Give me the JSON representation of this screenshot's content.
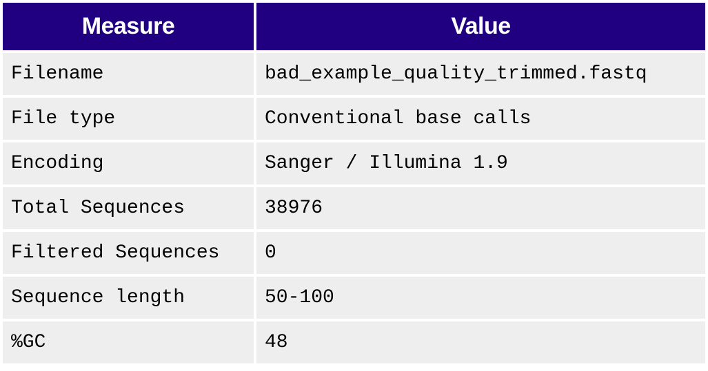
{
  "header": {
    "measure": "Measure",
    "value": "Value"
  },
  "rows": [
    {
      "measure": "Filename",
      "value": "bad_example_quality_trimmed.fastq"
    },
    {
      "measure": "File type",
      "value": "Conventional base calls"
    },
    {
      "measure": "Encoding",
      "value": "Sanger / Illumina 1.9"
    },
    {
      "measure": "Total Sequences",
      "value": "38976"
    },
    {
      "measure": "Filtered Sequences",
      "value": "0"
    },
    {
      "measure": "Sequence length",
      "value": "50-100"
    },
    {
      "measure": "%GC",
      "value": "48"
    }
  ]
}
